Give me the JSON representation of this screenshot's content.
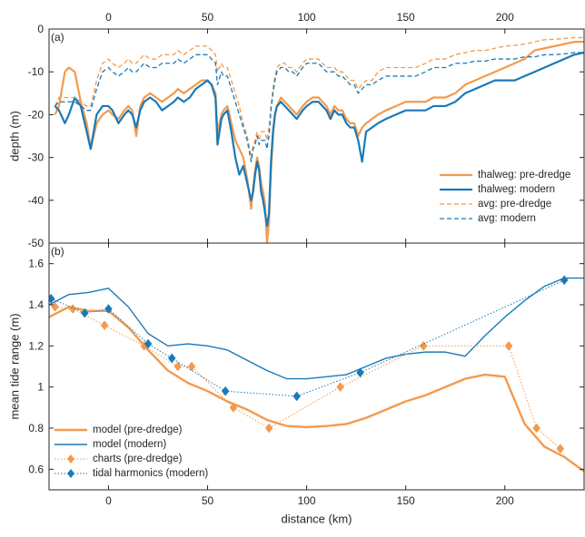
{
  "colors": {
    "orange": "#f39a4d",
    "blue": "#1a7ab7",
    "axis": "#262626"
  },
  "chart_data": [
    {
      "id": "a",
      "type": "line",
      "panel_label": "(a)",
      "ylabel": "depth (m)",
      "xlabel": "",
      "xlim": [
        -30,
        240
      ],
      "ylim": [
        -50,
        0
      ],
      "xticks": [
        0,
        50,
        100,
        150,
        200
      ],
      "yticks": [
        0,
        -10,
        -20,
        -30,
        -40,
        -50
      ],
      "x_tick_position": "top",
      "legend_position": "bottom-right",
      "series": [
        {
          "name": "thalweg: pre-dredge",
          "color": "#f39a4d",
          "dash": "solid",
          "width": 2.2,
          "x": [
            -27,
            -25,
            -22,
            -20,
            -17,
            -14,
            -11,
            -9,
            -6,
            -3,
            0,
            2,
            5,
            8,
            10,
            12,
            14,
            16,
            18,
            21,
            24,
            27,
            30,
            33,
            35,
            38,
            41,
            44,
            47,
            50,
            52,
            54,
            55,
            57,
            58,
            60,
            62,
            64,
            66,
            68,
            70,
            72,
            73,
            74,
            75,
            76,
            77,
            78,
            79,
            80,
            81,
            82,
            83,
            84,
            85,
            87,
            89,
            91,
            93,
            95,
            98,
            100,
            103,
            106,
            108,
            110,
            112,
            114,
            116,
            118,
            120,
            122,
            124,
            126,
            128,
            130,
            133,
            136,
            140,
            145,
            150,
            155,
            160,
            164,
            166,
            170,
            175,
            180,
            185,
            190,
            195,
            200,
            205,
            210,
            215,
            220,
            225,
            230,
            235,
            240
          ],
          "y": [
            -20,
            -18,
            -10,
            -9,
            -10,
            -17,
            -22,
            -28,
            -22,
            -20,
            -19,
            -20,
            -21,
            -19,
            -18,
            -19,
            -25,
            -18,
            -16,
            -15,
            -16,
            -17,
            -16,
            -15,
            -14,
            -15,
            -14,
            -13,
            -12,
            -12,
            -13,
            -15,
            -24,
            -20,
            -19,
            -18,
            -22,
            -26,
            -28,
            -30,
            -35,
            -42,
            -37,
            -33,
            -30,
            -32,
            -36,
            -38,
            -41,
            -50,
            -45,
            -33,
            -25,
            -20,
            -18,
            -16,
            -17,
            -18,
            -19,
            -20,
            -18,
            -17,
            -16,
            -16,
            -17,
            -18,
            -20,
            -18,
            -19,
            -19,
            -21,
            -22,
            -22,
            -25,
            -23,
            -22,
            -21,
            -20,
            -19,
            -18,
            -17,
            -17,
            -17,
            -16,
            -16,
            -16,
            -15,
            -13,
            -12,
            -11,
            -10,
            -9,
            -8,
            -7,
            -5,
            -4.5,
            -4,
            -3.5,
            -3,
            -3
          ]
        },
        {
          "name": "thalweg: modern",
          "color": "#1a7ab7",
          "dash": "solid",
          "width": 2.2,
          "x": [
            -27,
            -25,
            -22,
            -20,
            -17,
            -14,
            -11,
            -9,
            -6,
            -3,
            0,
            2,
            5,
            8,
            10,
            12,
            14,
            16,
            18,
            21,
            24,
            27,
            30,
            33,
            35,
            38,
            41,
            44,
            47,
            50,
            52,
            54,
            55,
            57,
            58,
            60,
            62,
            64,
            66,
            68,
            70,
            72,
            73,
            74,
            75,
            76,
            77,
            78,
            79,
            80,
            81,
            82,
            83,
            84,
            85,
            87,
            89,
            91,
            93,
            95,
            98,
            100,
            103,
            106,
            108,
            110,
            112,
            114,
            116,
            118,
            120,
            122,
            124,
            126,
            128,
            130,
            133,
            136,
            140,
            145,
            150,
            155,
            160,
            164,
            166,
            170,
            175,
            180,
            185,
            190,
            195,
            200,
            205,
            210,
            215,
            220,
            225,
            230,
            235,
            240
          ],
          "y": [
            -18,
            -19,
            -22,
            -20,
            -16,
            -18,
            -24,
            -28,
            -20,
            -18,
            -18,
            -19,
            -22,
            -20,
            -19,
            -20,
            -23,
            -19,
            -17,
            -16,
            -17,
            -19,
            -18,
            -17,
            -16,
            -17,
            -16,
            -14,
            -13,
            -12,
            -13,
            -16,
            -27,
            -21,
            -20,
            -19,
            -24,
            -30,
            -34,
            -32,
            -36,
            -40,
            -38,
            -34,
            -31,
            -33,
            -38,
            -40,
            -43,
            -46,
            -43,
            -31,
            -24,
            -20,
            -18,
            -17,
            -18,
            -19,
            -20,
            -21,
            -19,
            -18,
            -17,
            -17,
            -18,
            -19,
            -21,
            -19,
            -20,
            -20,
            -22,
            -23,
            -23,
            -26,
            -31,
            -24,
            -23,
            -22,
            -21,
            -20,
            -19,
            -19,
            -19,
            -18,
            -18,
            -18,
            -17,
            -15,
            -14,
            -13,
            -12,
            -12,
            -12,
            -11,
            -10,
            -9,
            -8,
            -7,
            -6,
            -5.5
          ]
        },
        {
          "name": "avg: pre-dredge",
          "color": "#f39a4d",
          "dash": "dashed",
          "width": 1.3,
          "x": [
            -27,
            -25,
            -22,
            -20,
            -17,
            -14,
            -11,
            -9,
            -6,
            -3,
            0,
            2,
            5,
            8,
            10,
            12,
            14,
            16,
            18,
            21,
            24,
            27,
            30,
            33,
            35,
            38,
            41,
            44,
            47,
            50,
            52,
            54,
            55,
            57,
            58,
            60,
            62,
            64,
            66,
            68,
            70,
            72,
            73,
            74,
            75,
            76,
            77,
            78,
            79,
            80,
            81,
            82,
            83,
            84,
            85,
            87,
            89,
            91,
            93,
            95,
            98,
            100,
            103,
            106,
            108,
            110,
            112,
            114,
            116,
            118,
            120,
            122,
            124,
            126,
            128,
            130,
            133,
            136,
            140,
            145,
            150,
            155,
            160,
            164,
            166,
            170,
            175,
            180,
            185,
            190,
            195,
            200,
            205,
            210,
            215,
            220,
            225,
            230,
            235,
            240
          ],
          "y": [
            -18,
            -16,
            -16,
            -16,
            -16,
            -17,
            -18,
            -18,
            -12,
            -8,
            -7,
            -8,
            -9,
            -8,
            -7,
            -8,
            -8,
            -7,
            -6,
            -7,
            -7,
            -6,
            -6,
            -6,
            -5,
            -6,
            -5,
            -4,
            -4,
            -4,
            -5,
            -6,
            -10,
            -8,
            -9,
            -9,
            -12,
            -15,
            -18,
            -22,
            -25,
            -30,
            -27,
            -26,
            -24,
            -26,
            -24,
            -24,
            -24,
            -26,
            -23,
            -18,
            -14,
            -11,
            -9,
            -8,
            -8,
            -9,
            -9,
            -10,
            -8,
            -7,
            -7,
            -7,
            -8,
            -9,
            -9,
            -9,
            -10,
            -10,
            -11,
            -12,
            -12,
            -14,
            -13,
            -12,
            -12,
            -10,
            -9,
            -9,
            -9,
            -9,
            -8,
            -7,
            -7,
            -7,
            -6,
            -5.5,
            -5,
            -5,
            -4.5,
            -4,
            -3.8,
            -3.5,
            -3,
            -2.5,
            -2.4,
            -2.2,
            -2,
            -2
          ]
        },
        {
          "name": "avg: modern",
          "color": "#1a7ab7",
          "dash": "dashed",
          "width": 1.3,
          "x": [
            -27,
            -25,
            -22,
            -20,
            -17,
            -14,
            -11,
            -9,
            -6,
            -3,
            0,
            2,
            5,
            8,
            10,
            12,
            14,
            16,
            18,
            21,
            24,
            27,
            30,
            33,
            35,
            38,
            41,
            44,
            47,
            50,
            52,
            54,
            55,
            57,
            58,
            60,
            62,
            64,
            66,
            68,
            70,
            72,
            73,
            74,
            75,
            76,
            77,
            78,
            79,
            80,
            81,
            82,
            83,
            84,
            85,
            87,
            89,
            91,
            93,
            95,
            98,
            100,
            103,
            106,
            108,
            110,
            112,
            114,
            116,
            118,
            120,
            122,
            124,
            126,
            128,
            130,
            133,
            136,
            140,
            145,
            150,
            155,
            160,
            164,
            166,
            170,
            175,
            180,
            185,
            190,
            195,
            200,
            205,
            210,
            215,
            220,
            225,
            230,
            235,
            240
          ],
          "y": [
            -18,
            -17,
            -17,
            -17,
            -17,
            -18,
            -19,
            -19,
            -14,
            -10,
            -9,
            -10,
            -11,
            -10,
            -9,
            -10,
            -10,
            -9,
            -8,
            -9,
            -9,
            -8,
            -8,
            -8,
            -7,
            -8,
            -7,
            -6,
            -6,
            -6,
            -7,
            -8,
            -13,
            -10,
            -11,
            -11,
            -14,
            -17,
            -20,
            -23,
            -26,
            -31,
            -28,
            -27,
            -25,
            -27,
            -26,
            -26,
            -26,
            -28,
            -25,
            -19,
            -15,
            -12,
            -10,
            -9,
            -9,
            -10,
            -10,
            -11,
            -9,
            -8,
            -8,
            -8,
            -9,
            -10,
            -10,
            -10,
            -11,
            -11,
            -12,
            -13,
            -13,
            -15,
            -14,
            -13,
            -13,
            -12,
            -11,
            -11,
            -11,
            -11,
            -10,
            -9,
            -9,
            -9,
            -8,
            -8,
            -7.5,
            -7.5,
            -7,
            -7,
            -7,
            -6.5,
            -6.5,
            -6,
            -6,
            -5.8,
            -5.5,
            -5.5
          ]
        }
      ]
    },
    {
      "id": "b",
      "type": "line",
      "panel_label": "(b)",
      "ylabel": "mean tide range (m)",
      "xlabel": "distance (km)",
      "xlim": [
        -30,
        240
      ],
      "ylim": [
        0.5,
        1.7
      ],
      "xticks": [
        0,
        50,
        100,
        150,
        200
      ],
      "yticks": [
        0.6,
        0.8,
        1,
        1.2,
        1.4,
        1.6
      ],
      "ytick_labels": [
        "0.6",
        "0.8",
        "1",
        "1.2",
        "1.4",
        "1.6"
      ],
      "legend_position": "bottom-left",
      "series": [
        {
          "name": "model (pre-dredge)",
          "color": "#f39a4d",
          "dash": "solid",
          "width": 2.4,
          "marker": "none",
          "x": [
            -30,
            -20,
            -10,
            0,
            10,
            20,
            30,
            40,
            50,
            60,
            70,
            80,
            90,
            100,
            110,
            120,
            130,
            140,
            150,
            160,
            170,
            180,
            190,
            200,
            210,
            220,
            230,
            240
          ],
          "y": [
            1.34,
            1.39,
            1.37,
            1.37,
            1.29,
            1.18,
            1.08,
            1.02,
            0.98,
            0.93,
            0.89,
            0.84,
            0.81,
            0.805,
            0.81,
            0.82,
            0.85,
            0.89,
            0.93,
            0.96,
            1.0,
            1.04,
            1.06,
            1.05,
            0.82,
            0.71,
            0.66,
            0.59
          ]
        },
        {
          "name": "model (modern)",
          "color": "#1a7ab7",
          "dash": "solid",
          "width": 1.4,
          "marker": "none",
          "x": [
            -30,
            -20,
            -10,
            0,
            10,
            20,
            30,
            40,
            50,
            60,
            70,
            80,
            90,
            100,
            110,
            120,
            130,
            140,
            150,
            160,
            170,
            180,
            190,
            200,
            210,
            220,
            230,
            240
          ],
          "y": [
            1.4,
            1.45,
            1.46,
            1.48,
            1.39,
            1.26,
            1.2,
            1.21,
            1.2,
            1.18,
            1.13,
            1.08,
            1.04,
            1.04,
            1.05,
            1.06,
            1.1,
            1.14,
            1.16,
            1.17,
            1.17,
            1.15,
            1.25,
            1.34,
            1.42,
            1.49,
            1.53,
            1.53
          ]
        },
        {
          "name": "charts (pre-dredge)",
          "color": "#f39a4d",
          "dash": "dotted",
          "width": 1,
          "marker": "diamond",
          "x": [
            -27,
            -18,
            -2,
            18,
            35,
            42,
            63,
            81,
            117,
            159,
            202,
            216,
            228
          ],
          "y": [
            1.39,
            1.38,
            1.3,
            1.2,
            1.1,
            1.1,
            0.9,
            0.8,
            1.0,
            1.2,
            1.2,
            0.8,
            0.7
          ]
        },
        {
          "name": "tidal harmonics (modern)",
          "color": "#1a7ab7",
          "dash": "dotted",
          "width": 1,
          "marker": "diamond",
          "x": [
            -29,
            -12,
            0,
            20,
            32,
            59,
            95,
            127,
            230
          ],
          "y": [
            1.43,
            1.36,
            1.38,
            1.21,
            1.14,
            0.98,
            0.955,
            1.07,
            1.52
          ]
        }
      ]
    }
  ]
}
